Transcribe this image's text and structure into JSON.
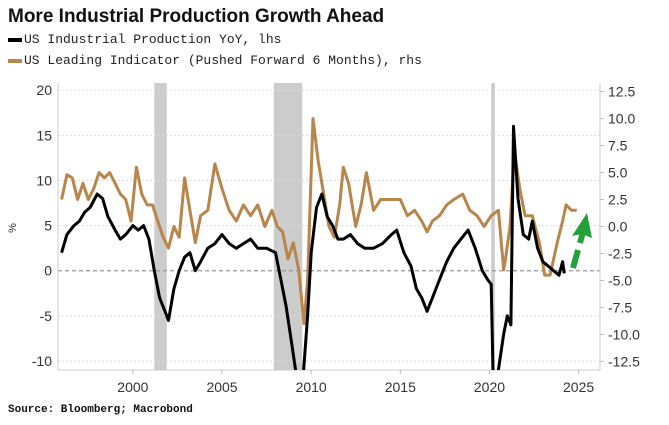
{
  "chart_data": {
    "type": "line",
    "title": "More Industrial Production Growth Ahead",
    "source": "Source: Bloomberg; Macrobond",
    "ylabel_left": "%",
    "xlim": [
      1995.8,
      2026.2
    ],
    "ylim_left": [
      -11,
      20.8
    ],
    "ylim_right": [
      -13.3,
      13.3
    ],
    "x_ticks": [
      2000,
      2005,
      2010,
      2015,
      2020,
      2025
    ],
    "y_ticks_left": [
      -10,
      -5,
      0,
      5,
      10,
      15,
      20
    ],
    "y_ticks_right": [
      "-12.5",
      "-10.0",
      "-7.5",
      "-5.0",
      "-2.5",
      "0.0",
      "2.5",
      "5.0",
      "7.5",
      "10.0",
      "12.5"
    ],
    "grid": true,
    "legend_placement": "top-left",
    "recessions": [
      [
        2001.2,
        2001.9
      ],
      [
        2007.9,
        2009.5
      ],
      [
        2020.1,
        2020.3
      ]
    ],
    "annotation": "green dashed arrow pointing up",
    "colors": {
      "ip": "#000000",
      "lei": "#b8864a",
      "recession": "#cccccc",
      "arrow": "#22a13a"
    },
    "series": [
      {
        "name": "US Industrial Production YoY, lhs",
        "axis": "left",
        "x": [
          1996.0,
          1996.3,
          1996.7,
          1997.0,
          1997.3,
          1997.6,
          1998.0,
          1998.3,
          1998.6,
          1999.0,
          1999.3,
          1999.6,
          2000.0,
          2000.3,
          2000.6,
          2000.9,
          2001.2,
          2001.5,
          2001.8,
          2002.0,
          2002.3,
          2002.6,
          2002.9,
          2003.2,
          2003.5,
          2003.8,
          2004.2,
          2004.6,
          2005.0,
          2005.4,
          2005.8,
          2006.2,
          2006.6,
          2007.0,
          2007.5,
          2008.0,
          2008.3,
          2008.6,
          2008.9,
          2009.2,
          2009.5,
          2009.8,
          2010.0,
          2010.3,
          2010.6,
          2010.9,
          2011.2,
          2011.5,
          2011.8,
          2012.2,
          2012.6,
          2013.0,
          2013.5,
          2014.0,
          2014.5,
          2014.8,
          2015.2,
          2015.6,
          2015.9,
          2016.2,
          2016.5,
          2016.8,
          2017.2,
          2017.6,
          2018.0,
          2018.4,
          2018.8,
          2019.2,
          2019.6,
          2019.9,
          2020.1,
          2020.25,
          2020.5,
          2020.8,
          2021.0,
          2021.2,
          2021.35,
          2021.6,
          2021.9,
          2022.2,
          2022.4,
          2022.7,
          2023.0,
          2023.3,
          2023.6,
          2023.9,
          2024.1,
          2024.2
        ],
        "values": [
          2.0,
          4,
          5,
          5.5,
          6.5,
          7,
          8.5,
          8,
          6,
          4.5,
          3.5,
          4,
          5,
          4.5,
          5.0,
          3.5,
          0,
          -3,
          -4.5,
          -5.5,
          -2,
          0,
          1.5,
          2.0,
          0.0,
          1.0,
          2.5,
          3.0,
          4.0,
          3.0,
          2.5,
          3.0,
          3.5,
          2.5,
          2.5,
          2.0,
          -1,
          -4,
          -8,
          -12,
          -13,
          -5,
          2,
          7,
          8.5,
          6,
          5,
          3.5,
          3.5,
          4,
          3,
          2.5,
          2.5,
          3,
          4,
          4.5,
          2,
          0.5,
          -2,
          -3,
          -4.5,
          -3,
          -1,
          1,
          2.5,
          3.5,
          4.5,
          2.5,
          0,
          -1,
          -1.5,
          -16,
          -11,
          -7,
          -5,
          -6,
          16,
          8,
          4,
          3.5,
          5.5,
          2.5,
          1,
          0.5,
          0,
          -0.5,
          1,
          -0.3
        ]
      },
      {
        "name": "US Leading Indicator (Pushed Forward 6 Months), rhs",
        "axis": "right",
        "x": [
          1996.0,
          1996.3,
          1996.6,
          1996.9,
          1997.2,
          1997.5,
          1997.8,
          1998.1,
          1998.4,
          1998.7,
          1999.0,
          1999.3,
          1999.6,
          1999.9,
          2000.2,
          2000.5,
          2000.8,
          2001.1,
          2001.4,
          2001.7,
          2002.0,
          2002.3,
          2002.6,
          2002.9,
          2003.2,
          2003.5,
          2003.8,
          2004.2,
          2004.6,
          2005.0,
          2005.4,
          2005.8,
          2006.2,
          2006.6,
          2007.0,
          2007.4,
          2007.8,
          2008.1,
          2008.4,
          2008.7,
          2009.0,
          2009.3,
          2009.6,
          2009.8,
          2010.1,
          2010.4,
          2010.7,
          2011.0,
          2011.3,
          2011.6,
          2011.8,
          2012.1,
          2012.5,
          2012.8,
          2013.1,
          2013.5,
          2013.9,
          2014.3,
          2014.7,
          2015.0,
          2015.4,
          2015.8,
          2016.2,
          2016.5,
          2016.8,
          2017.2,
          2017.6,
          2018.0,
          2018.5,
          2018.9,
          2019.3,
          2019.7,
          2020.1,
          2020.5,
          2020.8,
          2020.9,
          2021.15,
          2021.4,
          2021.7,
          2022.0,
          2022.4,
          2022.8,
          2023.1,
          2023.4,
          2023.8,
          2024.1,
          2024.3,
          2024.6,
          2024.9
        ],
        "values": [
          2.5,
          4.8,
          4.5,
          2.5,
          4,
          2.5,
          3.5,
          5,
          4.5,
          5,
          4,
          3,
          2.5,
          0.5,
          5.5,
          3,
          2.0,
          2.0,
          0.5,
          -1,
          -2,
          0,
          -1,
          4.5,
          1.5,
          -1.5,
          1,
          1.5,
          5.8,
          3.5,
          1.5,
          0.5,
          2,
          1,
          2,
          0,
          1.5,
          0,
          -0.5,
          -3,
          -1.5,
          -4,
          -9,
          -5,
          10,
          6,
          3,
          0,
          -1,
          2,
          5.5,
          4,
          0,
          2,
          5,
          1.5,
          2.5,
          2.5,
          2.5,
          2.5,
          1,
          1.5,
          0.5,
          -0.5,
          0.5,
          1,
          2,
          2.5,
          3.0,
          1.5,
          1,
          0,
          1,
          1.5,
          -4,
          -3,
          0,
          7,
          3.5,
          1,
          1,
          -1.5,
          -4.5,
          -4.5,
          -1.5,
          0.5,
          2,
          1.5,
          1.5
        ]
      }
    ]
  }
}
